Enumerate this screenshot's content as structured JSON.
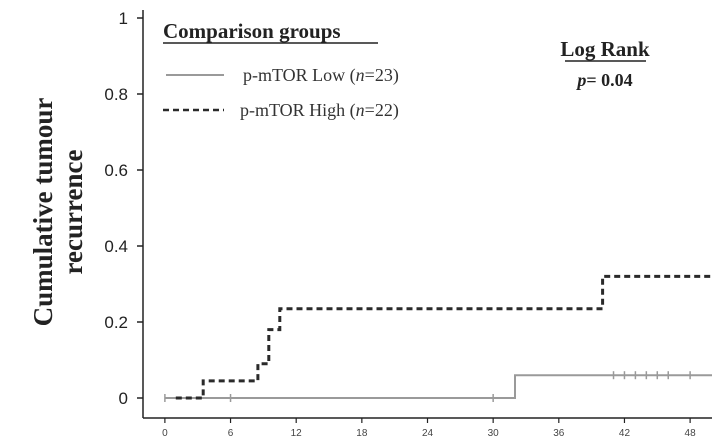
{
  "chart_data": {
    "type": "line",
    "title": "",
    "xlabel": "",
    "ylabel_line1": "Cumulative tumour",
    "ylabel_line2": "recurrence",
    "xlim": [
      -2,
      50
    ],
    "ylim": [
      0,
      1
    ],
    "x_ticks": [
      0,
      6,
      12,
      18,
      24,
      30,
      36,
      42,
      48
    ],
    "y_ticks": [
      0,
      0.2,
      0.4,
      0.6,
      0.8,
      1
    ],
    "y_tick_labels": [
      "0",
      "0.2",
      "0.4",
      "0.6",
      "0.8",
      "1"
    ],
    "legend": {
      "title": "Comparison groups",
      "placement": "top-left"
    },
    "annotation": {
      "title": "Log Rank",
      "p_prefix": "p",
      "p_value": "= 0.04"
    },
    "series": [
      {
        "name_base": "p-mTOR Low (",
        "name_italic": "n",
        "name_tail": "=23)",
        "style": "solid",
        "color": "#9a9a9a",
        "steps": [
          [
            0,
            0
          ],
          [
            32,
            0
          ],
          [
            32,
            0.06
          ],
          [
            50,
            0.06
          ]
        ],
        "censor_x": [
          0,
          6,
          30,
          41,
          42,
          43,
          44,
          45,
          46,
          48
        ]
      },
      {
        "name_base": "p-mTOR High (",
        "name_italic": "n",
        "name_tail": "=22)",
        "style": "dashed",
        "color": "#2a2a2a",
        "steps": [
          [
            1,
            0
          ],
          [
            3.5,
            0
          ],
          [
            3.5,
            0.045
          ],
          [
            8.5,
            0.045
          ],
          [
            8.5,
            0.09
          ],
          [
            9.5,
            0.09
          ],
          [
            9.5,
            0.18
          ],
          [
            10.5,
            0.18
          ],
          [
            10.5,
            0.235
          ],
          [
            40,
            0.235
          ],
          [
            40,
            0.32
          ],
          [
            50,
            0.32
          ]
        ],
        "censor_x": []
      }
    ]
  }
}
